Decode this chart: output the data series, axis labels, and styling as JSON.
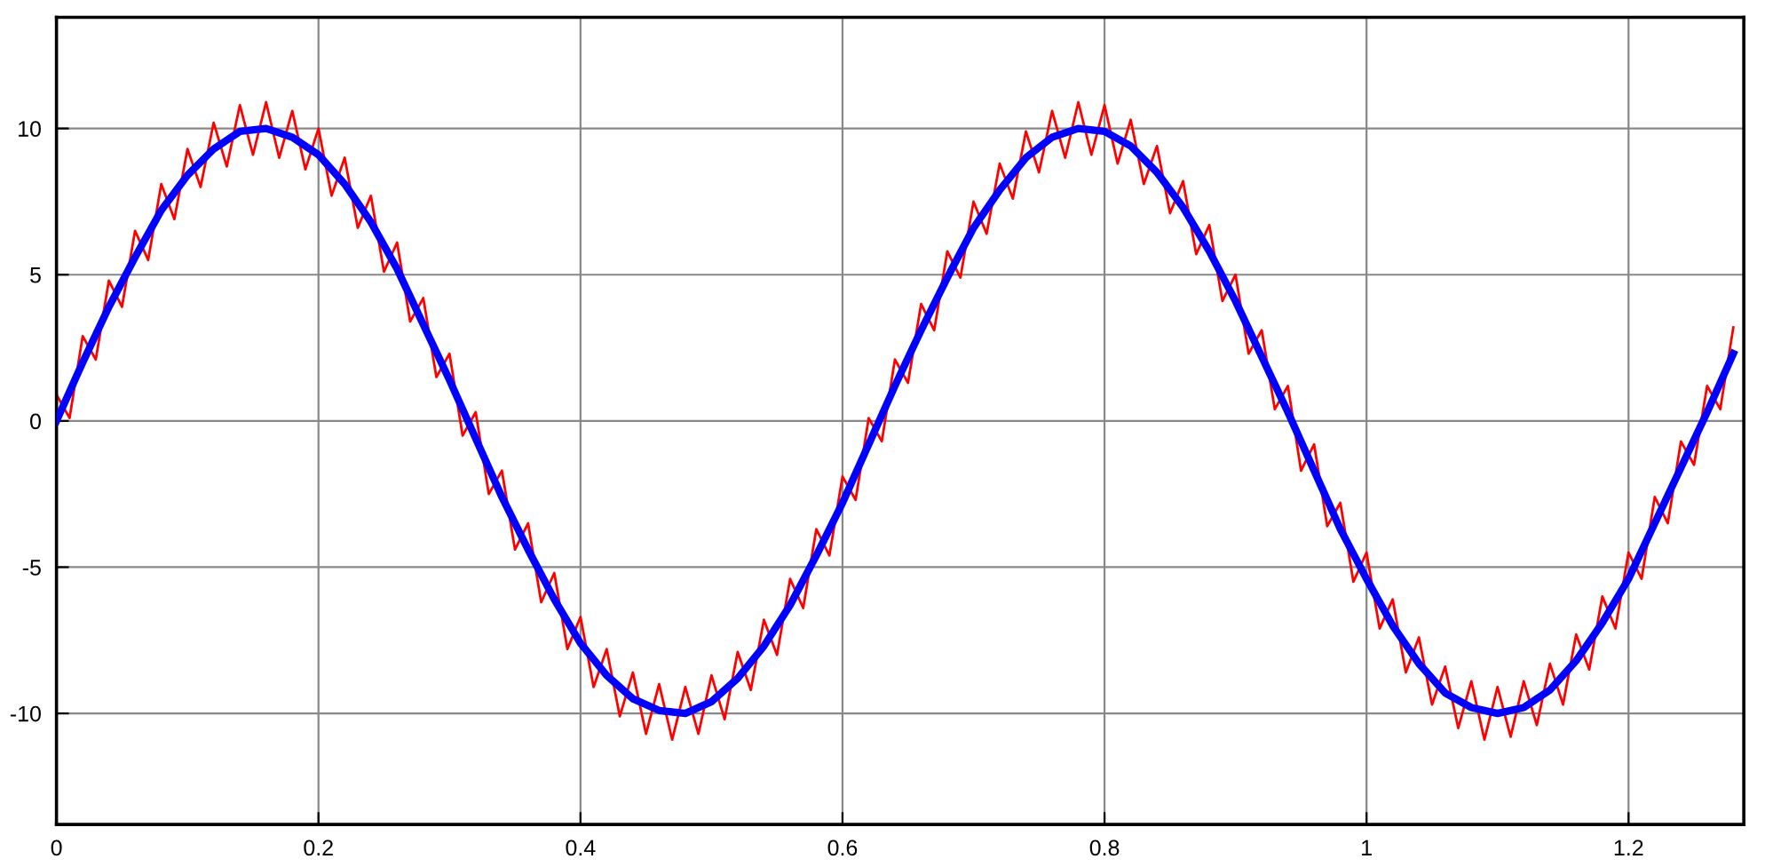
{
  "chart_data": {
    "type": "line",
    "xlim": [
      0,
      1.288
    ],
    "ylim": [
      -13.8,
      13.8
    ],
    "xticks": [
      0,
      0.2,
      0.4,
      0.6,
      0.8,
      1,
      1.2
    ],
    "yticks": [
      -10,
      -5,
      0,
      5,
      10
    ],
    "grid": true,
    "legend": false,
    "marker": "none",
    "line_style": "solid",
    "series": [
      {
        "color": "#ff0000",
        "x": [
          0,
          0.01,
          0.02,
          0.03,
          0.04,
          0.05,
          0.06,
          0.07,
          0.08,
          0.09,
          0.1,
          0.11,
          0.12,
          0.13,
          0.14,
          0.15,
          0.16,
          0.17,
          0.18,
          0.19,
          0.2,
          0.21,
          0.22,
          0.23,
          0.24,
          0.25,
          0.26,
          0.27,
          0.28,
          0.29,
          0.3,
          0.31,
          0.32,
          0.33,
          0.34,
          0.35,
          0.36,
          0.37,
          0.38,
          0.39,
          0.4,
          0.41,
          0.42,
          0.43,
          0.44,
          0.45,
          0.46,
          0.47,
          0.48,
          0.49,
          0.5,
          0.51,
          0.52,
          0.53,
          0.54,
          0.55,
          0.56,
          0.57,
          0.58,
          0.59,
          0.6,
          0.61,
          0.62,
          0.63,
          0.64,
          0.65,
          0.66,
          0.67,
          0.68,
          0.69,
          0.7,
          0.71,
          0.72,
          0.73,
          0.74,
          0.75,
          0.76,
          0.77,
          0.78,
          0.79,
          0.8,
          0.81,
          0.82,
          0.83,
          0.84,
          0.85,
          0.86,
          0.87,
          0.88,
          0.89,
          0.9,
          0.91,
          0.92,
          0.93,
          0.94,
          0.95,
          0.96,
          0.97,
          0.98,
          0.99,
          1.0,
          1.01,
          1.02,
          1.03,
          1.04,
          1.05,
          1.06,
          1.07,
          1.08,
          1.09,
          1.1,
          1.11,
          1.12,
          1.13,
          1.14,
          1.15,
          1.16,
          1.17,
          1.18,
          1.19,
          1.2,
          1.21,
          1.22,
          1.23,
          1.24,
          1.25,
          1.26,
          1.27,
          1.28
        ],
        "values": [
          0.9,
          0.1,
          2.9,
          2.1,
          4.8,
          3.9,
          6.5,
          5.5,
          8.1,
          6.9,
          9.3,
          8.0,
          10.2,
          8.7,
          10.8,
          9.1,
          10.9,
          9.0,
          10.6,
          8.6,
          10.0,
          7.7,
          9.0,
          6.6,
          7.7,
          5.1,
          6.1,
          3.4,
          4.2,
          1.5,
          2.3,
          -0.5,
          0.3,
          -2.5,
          -1.7,
          -4.4,
          -3.5,
          -6.2,
          -5.2,
          -7.8,
          -6.7,
          -9.1,
          -7.8,
          -10.1,
          -8.6,
          -10.7,
          -9.0,
          -10.9,
          -9.1,
          -10.7,
          -8.7,
          -10.2,
          -7.9,
          -9.2,
          -6.8,
          -8.0,
          -5.4,
          -6.4,
          -3.7,
          -4.6,
          -1.9,
          -2.7,
          0.1,
          -0.7,
          2.1,
          1.3,
          4.0,
          3.1,
          5.8,
          4.9,
          7.5,
          6.4,
          8.8,
          7.6,
          9.9,
          8.5,
          10.6,
          9.0,
          10.9,
          9.1,
          10.8,
          8.8,
          10.3,
          8.1,
          9.4,
          7.1,
          8.2,
          5.7,
          6.7,
          4.1,
          5.0,
          2.3,
          3.1,
          0.4,
          1.2,
          -1.7,
          -0.8,
          -3.6,
          -2.8,
          -5.5,
          -4.5,
          -7.1,
          -6.1,
          -8.6,
          -7.4,
          -9.7,
          -8.4,
          -10.5,
          -8.9,
          -10.9,
          -9.1,
          -10.8,
          -8.9,
          -10.4,
          -8.3,
          -9.7,
          -7.3,
          -8.5,
          -6.0,
          -7.1,
          -4.5,
          -5.4,
          -2.6,
          -3.5,
          -0.7,
          -1.5,
          1.2,
          0.4,
          3.2
        ]
      },
      {
        "color": "#0000ff",
        "x": [
          0,
          0.02,
          0.04,
          0.06,
          0.08,
          0.1,
          0.12,
          0.14,
          0.16,
          0.18,
          0.2,
          0.22,
          0.24,
          0.26,
          0.28,
          0.3,
          0.32,
          0.34,
          0.36,
          0.38,
          0.4,
          0.42,
          0.44,
          0.46,
          0.48,
          0.5,
          0.52,
          0.54,
          0.56,
          0.58,
          0.6,
          0.62,
          0.64,
          0.66,
          0.68,
          0.7,
          0.72,
          0.74,
          0.76,
          0.78,
          0.8,
          0.82,
          0.84,
          0.86,
          0.88,
          0.9,
          0.92,
          0.94,
          0.96,
          0.98,
          1.0,
          1.02,
          1.04,
          1.06,
          1.08,
          1.1,
          1.12,
          1.14,
          1.16,
          1.18,
          1.2,
          1.22,
          1.24,
          1.26,
          1.28
        ],
        "values": [
          0,
          2.0,
          3.9,
          5.6,
          7.2,
          8.4,
          9.3,
          9.9,
          10.0,
          9.7,
          9.1,
          8.1,
          6.8,
          5.2,
          3.3,
          1.4,
          -0.6,
          -2.6,
          -4.4,
          -6.1,
          -7.6,
          -8.7,
          -9.5,
          -9.9,
          -10.0,
          -9.6,
          -8.8,
          -7.7,
          -6.3,
          -4.6,
          -2.8,
          -0.8,
          1.2,
          3.1,
          4.9,
          6.6,
          7.9,
          9.0,
          9.7,
          10.0,
          9.9,
          9.4,
          8.5,
          7.3,
          5.8,
          4.1,
          2.2,
          0.3,
          -1.7,
          -3.7,
          -5.4,
          -7.0,
          -8.3,
          -9.3,
          -9.8,
          -10.0,
          -9.8,
          -9.2,
          -8.2,
          -6.9,
          -5.4,
          -3.5,
          -1.6,
          0.3,
          2.3
        ]
      }
    ]
  }
}
